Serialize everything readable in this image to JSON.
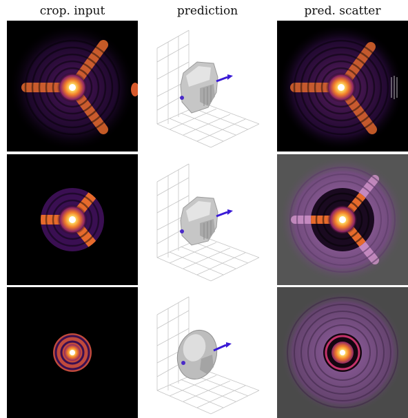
{
  "headers": [
    "crop. input",
    "prediction",
    "pred. scatter"
  ],
  "rows": [
    {
      "crop_fraction": 1.0,
      "scatter_background": "#000000",
      "pattern": "arms"
    },
    {
      "crop_fraction": 0.48,
      "scatter_background": "#555555",
      "pattern": "arms"
    },
    {
      "crop_fraction": 0.28,
      "scatter_background": "#4a4a4a",
      "pattern": "rings"
    }
  ],
  "colors": {
    "colormap": "inferno",
    "vector_arrow": "#3a1bd6",
    "particle": "#c8c8c8",
    "axes_grid": "#bfbfbf"
  }
}
